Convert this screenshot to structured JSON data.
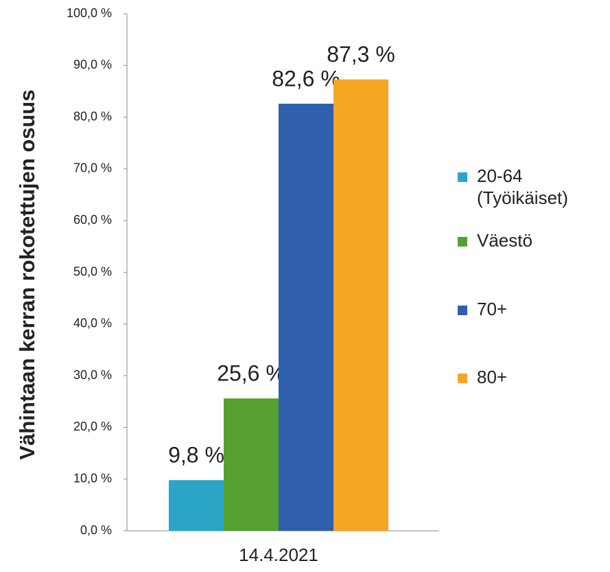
{
  "chart_data": {
    "type": "bar",
    "y_label": "Vähintaan kerran rokotettujen osuus",
    "categories": [
      "14.4.2021"
    ],
    "series": [
      {
        "name": "20-64 (Työikäiset)",
        "color": "#2aa5c7",
        "values": [
          9.8
        ],
        "value_labels": [
          "9,8 %"
        ]
      },
      {
        "name": "Väestö",
        "color": "#55a030",
        "values": [
          25.6
        ],
        "value_labels": [
          "25,6 %"
        ]
      },
      {
        "name": "70+",
        "color": "#2f5fad",
        "values": [
          82.6
        ],
        "value_labels": [
          "82,6 %"
        ]
      },
      {
        "name": "80+",
        "color": "#f5a623",
        "values": [
          87.3
        ],
        "value_labels": [
          "87,3 %"
        ]
      }
    ],
    "ylim": [
      0,
      100
    ],
    "yticks": [
      {
        "value": 0,
        "label": "0,0 %"
      },
      {
        "value": 10,
        "label": "10,0 %"
      },
      {
        "value": 20,
        "label": "20,0 %"
      },
      {
        "value": 30,
        "label": "30,0 %"
      },
      {
        "value": 40,
        "label": "40,0 %"
      },
      {
        "value": 50,
        "label": "50,0 %"
      },
      {
        "value": 60,
        "label": "60,0 %"
      },
      {
        "value": 70,
        "label": "70,0 %"
      },
      {
        "value": 80,
        "label": "80,0 %"
      },
      {
        "value": 90,
        "label": "90,0 %"
      },
      {
        "value": 100,
        "label": "100,0 %"
      }
    ],
    "grid": false,
    "legend": "right"
  }
}
